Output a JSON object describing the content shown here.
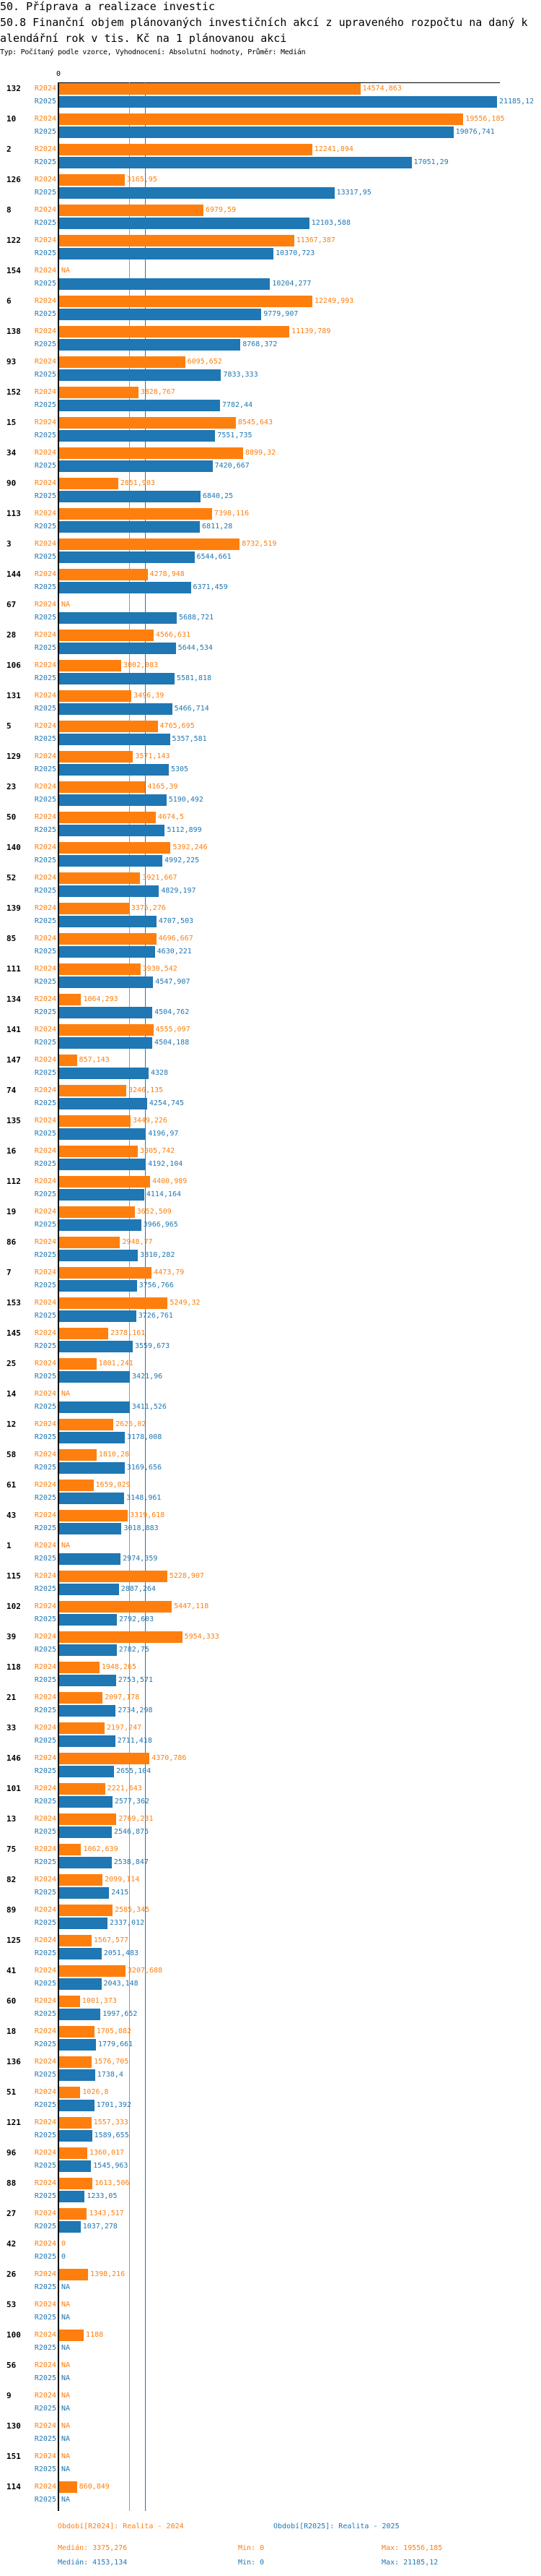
{
  "header": {
    "title": "50. Příprava a realizace investic",
    "indicator_line1": "50.8 Finanční objem plánovaných investičních akcí z upraveného rozpočtu na daný k",
    "indicator_line2": "alendářní rok v tis. Kč na 1 plánovanou akci",
    "subtitle": "Typ: Počítaný podle vzorce, Vyhodnocení: Absolutní hodnoty, Průměr: Medián"
  },
  "colors": {
    "r2024": "#ff7f0e",
    "r2025": "#1f77b4",
    "axis": "#000000"
  },
  "chart_data": {
    "type": "bar",
    "orientation": "horizontal",
    "axis_zero_label": "0",
    "xlim": [
      0,
      21185.12
    ],
    "series_names": [
      "R2024",
      "R2025"
    ],
    "medians": {
      "R2024": 3375.276,
      "R2025": 4153.134
    },
    "rows": [
      [
        "132",
        "14574,863",
        "21185,12"
      ],
      [
        "10",
        "19556,185",
        "19076,741"
      ],
      [
        "2",
        "12241,894",
        "17051,29"
      ],
      [
        "126",
        "3165,95",
        "13317,95"
      ],
      [
        "8",
        "6979,59",
        "12103,588"
      ],
      [
        "122",
        "11367,387",
        "10370,723"
      ],
      [
        "154",
        "NA",
        "10204,277"
      ],
      [
        "6",
        "12249,993",
        "9779,907"
      ],
      [
        "138",
        "11139,789",
        "8768,372"
      ],
      [
        "93",
        "6095,652",
        "7833,333"
      ],
      [
        "152",
        "3828,767",
        "7782,44"
      ],
      [
        "15",
        "8545,643",
        "7551,735"
      ],
      [
        "34",
        "8899,32",
        "7420,667"
      ],
      [
        "90",
        "2851,903",
        "6840,25"
      ],
      [
        "113",
        "7398,116",
        "6811,28"
      ],
      [
        "3",
        "8732,519",
        "6544,661"
      ],
      [
        "144",
        "4278,948",
        "6371,459"
      ],
      [
        "67",
        "NA",
        "5688,721"
      ],
      [
        "28",
        "4566,631",
        "5644,534"
      ],
      [
        "106",
        "3002,083",
        "5581,818"
      ],
      [
        "131",
        "3496,39",
        "5466,714"
      ],
      [
        "5",
        "4765,695",
        "5357,581"
      ],
      [
        "129",
        "3571,143",
        "5305"
      ],
      [
        "23",
        "4165,39",
        "5190,492"
      ],
      [
        "50",
        "4674,5",
        "5112,899"
      ],
      [
        "140",
        "5392,246",
        "4992,225"
      ],
      [
        "52",
        "3921,667",
        "4829,197"
      ],
      [
        "139",
        "3375,276",
        "4707,503"
      ],
      [
        "85",
        "4696,667",
        "4630,221"
      ],
      [
        "111",
        "3930,542",
        "4547,907"
      ],
      [
        "134",
        "1064,293",
        "4504,762"
      ],
      [
        "141",
        "4555,097",
        "4504,188"
      ],
      [
        "147",
        "857,143",
        "4328"
      ],
      [
        "74",
        "3246,135",
        "4254,745"
      ],
      [
        "135",
        "3449,226",
        "4196,97"
      ],
      [
        "16",
        "3805,742",
        "4192,104"
      ],
      [
        "112",
        "4400,989",
        "4114,164"
      ],
      [
        "19",
        "3652,509",
        "3966,965"
      ],
      [
        "86",
        "2948,77",
        "3810,282"
      ],
      [
        "7",
        "4473,79",
        "3756,766"
      ],
      [
        "153",
        "5249,32",
        "3726,761"
      ],
      [
        "145",
        "2378,161",
        "3559,673"
      ],
      [
        "25",
        "1801,241",
        "3421,96"
      ],
      [
        "14",
        "NA",
        "3411,526"
      ],
      [
        "12",
        "2626,02",
        "3178,008"
      ],
      [
        "58",
        "1810,28",
        "3169,656"
      ],
      [
        "61",
        "1659,029",
        "3148,961"
      ],
      [
        "43",
        "3319,618",
        "3018,883"
      ],
      [
        "1",
        "NA",
        "2974,359"
      ],
      [
        "115",
        "5228,907",
        "2887,264"
      ],
      [
        "102",
        "5447,118",
        "2792,603"
      ],
      [
        "39",
        "5954,333",
        "2782,75"
      ],
      [
        "118",
        "1948,265",
        "2753,571"
      ],
      [
        "21",
        "2097,178",
        "2734,298"
      ],
      [
        "33",
        "2197,247",
        "2711,418"
      ],
      [
        "146",
        "4370,786",
        "2655,104"
      ],
      [
        "101",
        "2221,643",
        "2577,362"
      ],
      [
        "13",
        "2769,231",
        "2546,875"
      ],
      [
        "75",
        "1062,639",
        "2538,847"
      ],
      [
        "82",
        "2099,114",
        "2415"
      ],
      [
        "89",
        "2585,345",
        "2337,012"
      ],
      [
        "125",
        "1567,577",
        "2051,483"
      ],
      [
        "41",
        "3207,688",
        "2043,148"
      ],
      [
        "60",
        "1001,373",
        "1997,652"
      ],
      [
        "18",
        "1705,882",
        "1779,661"
      ],
      [
        "136",
        "1576,705",
        "1738,4"
      ],
      [
        "51",
        "1026,8",
        "1701,392"
      ],
      [
        "121",
        "1557,333",
        "1589,655"
      ],
      [
        "96",
        "1360,017",
        "1545,963"
      ],
      [
        "88",
        "1613,506",
        "1233,05"
      ],
      [
        "27",
        "1343,517",
        "1037,278"
      ],
      [
        "42",
        "0",
        "0"
      ],
      [
        "26",
        "1398,216",
        "NA"
      ],
      [
        "53",
        "NA",
        "NA"
      ],
      [
        "100",
        "1188",
        "NA"
      ],
      [
        "56",
        "NA",
        "NA"
      ],
      [
        "9",
        "NA",
        "NA"
      ],
      [
        "130",
        "NA",
        "NA"
      ],
      [
        "151",
        "NA",
        "NA"
      ],
      [
        "114",
        "860,849",
        "NA"
      ]
    ]
  },
  "footer": {
    "legend_2024": "Období[R2024]: Realita - 2024",
    "legend_2025": "Období[R2025]: Realita - 2025",
    "median_2024": "Medián: 3375,276",
    "median_2025": "Medián: 4153,134",
    "min_2024": "Min: 0",
    "min_2025": "Min: 0",
    "max_2024": "Max: 19556,185",
    "max_2025": "Max: 21185,12"
  }
}
